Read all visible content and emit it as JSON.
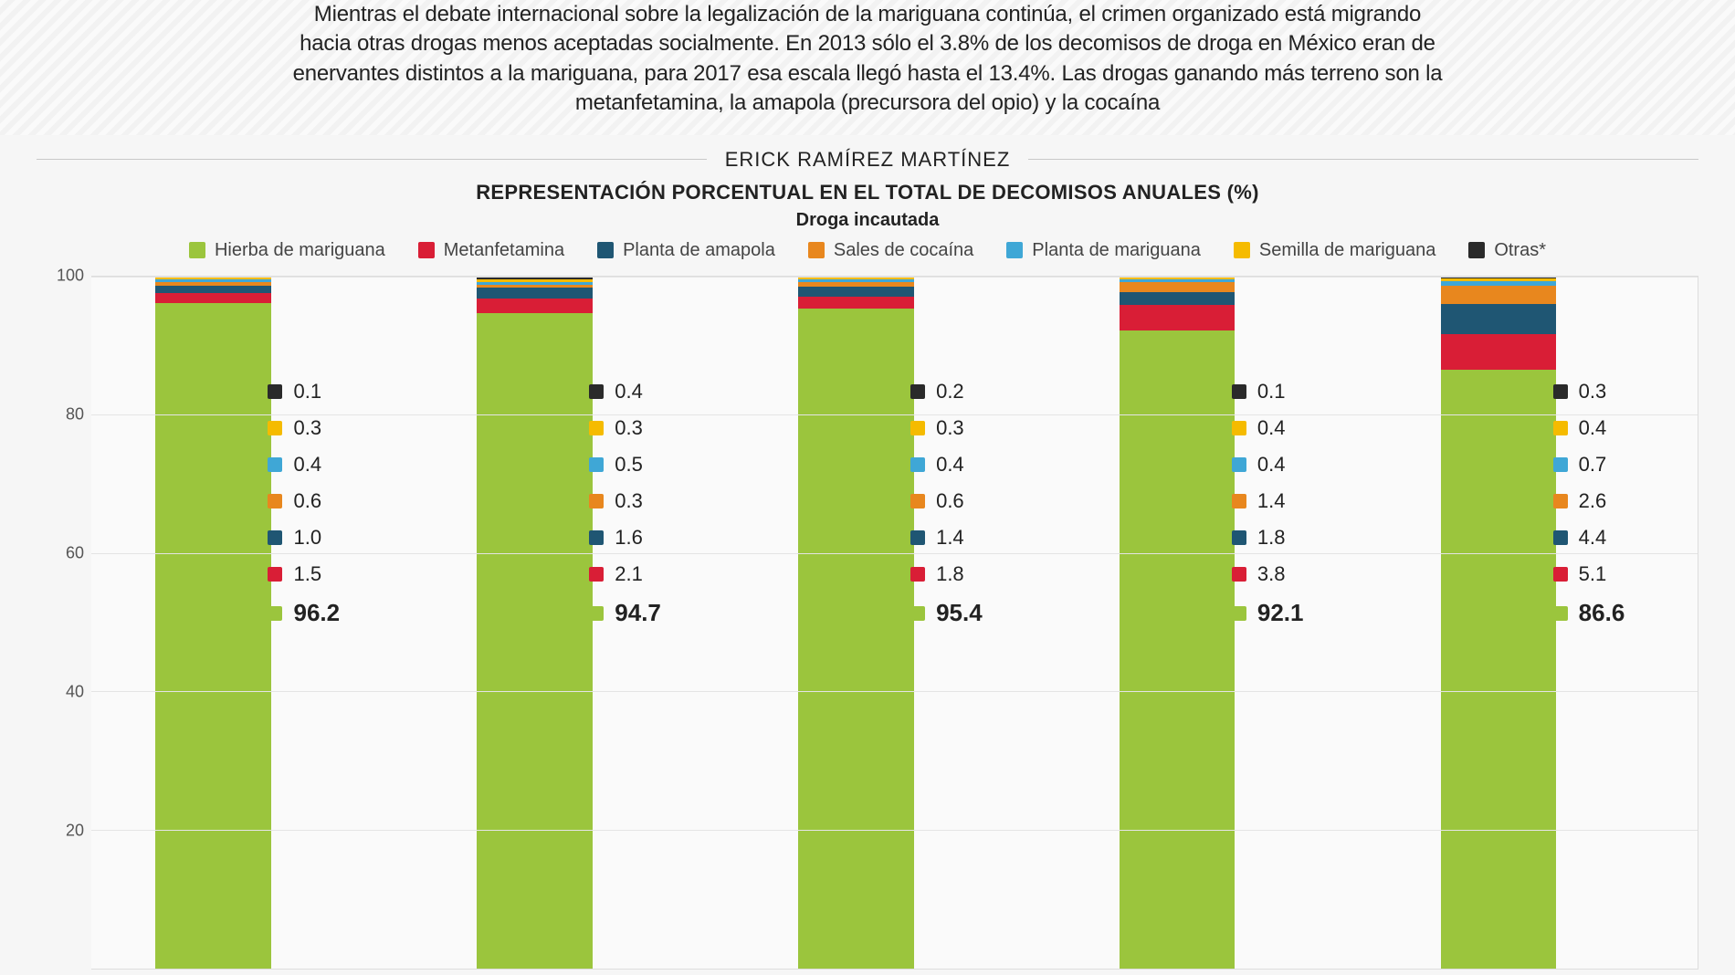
{
  "intro_text": "Mientras el debate internacional sobre la legalización de la mariguana continúa, el crimen organizado está migrando hacia otras drogas menos aceptadas socialmente. En 2013 sólo el 3.8% de los decomisos de droga en México eran de enervantes distintos a la mariguana, para 2017 esa escala llegó hasta el 13.4%. Las drogas ganando más terreno son la metanfetamina, la amapola (precursora del opio) y la cocaína",
  "byline": "ERICK RAMÍREZ MARTÍNEZ",
  "chart": {
    "title": "REPRESENTACIÓN PORCENTUAL EN EL TOTAL DE DECOMISOS ANUALES (%)",
    "subtitle": "Droga incautada",
    "type": "stacked-bar",
    "y_axis": {
      "ticks": [
        100,
        80,
        60,
        40,
        20
      ],
      "max": 100
    },
    "series": [
      {
        "key": "hierba",
        "label": "Hierba de mariguana",
        "color": "#9bc53d"
      },
      {
        "key": "meta",
        "label": "Metanfetamina",
        "color": "#d91e36"
      },
      {
        "key": "amapola",
        "label": "Planta de amapola",
        "color": "#1f5673"
      },
      {
        "key": "cocaina",
        "label": "Sales de cocaína",
        "color": "#e8871e"
      },
      {
        "key": "planta",
        "label": "Planta de mariguana",
        "color": "#3fa7d6"
      },
      {
        "key": "semilla",
        "label": "Semilla de mariguana",
        "color": "#f5bb00"
      },
      {
        "key": "otras",
        "label": "Otras*",
        "color": "#2a2a2a"
      }
    ],
    "columns": [
      {
        "vals": {
          "hierba": 96.2,
          "meta": 1.5,
          "amapola": 1.0,
          "cocaina": 0.6,
          "planta": 0.4,
          "semilla": 0.3,
          "otras": 0.1
        }
      },
      {
        "vals": {
          "hierba": 94.7,
          "meta": 2.1,
          "amapola": 1.6,
          "cocaina": 0.3,
          "planta": 0.5,
          "semilla": 0.3,
          "otras": 0.4
        }
      },
      {
        "vals": {
          "hierba": 95.4,
          "meta": 1.8,
          "amapola": 1.4,
          "cocaina": 0.6,
          "planta": 0.4,
          "semilla": 0.3,
          "otras": 0.2
        }
      },
      {
        "vals": {
          "hierba": 92.1,
          "meta": 3.8,
          "amapola": 1.8,
          "cocaina": 1.4,
          "planta": 0.4,
          "semilla": 0.4,
          "otras": 0.1
        }
      },
      {
        "vals": {
          "hierba": 86.6,
          "meta": 5.1,
          "amapola": 4.4,
          "cocaina": 2.6,
          "planta": 0.7,
          "semilla": 0.4,
          "otras": 0.3
        }
      }
    ],
    "value_display_order": [
      "otras",
      "semilla",
      "planta",
      "cocaina",
      "amapola",
      "meta",
      "hierba"
    ],
    "stack_order_bottom_up": [
      "hierba",
      "meta",
      "amapola",
      "cocaina",
      "planta",
      "semilla",
      "otras"
    ],
    "gridline_color": "#e4e4e4",
    "background": "#fafafa"
  }
}
